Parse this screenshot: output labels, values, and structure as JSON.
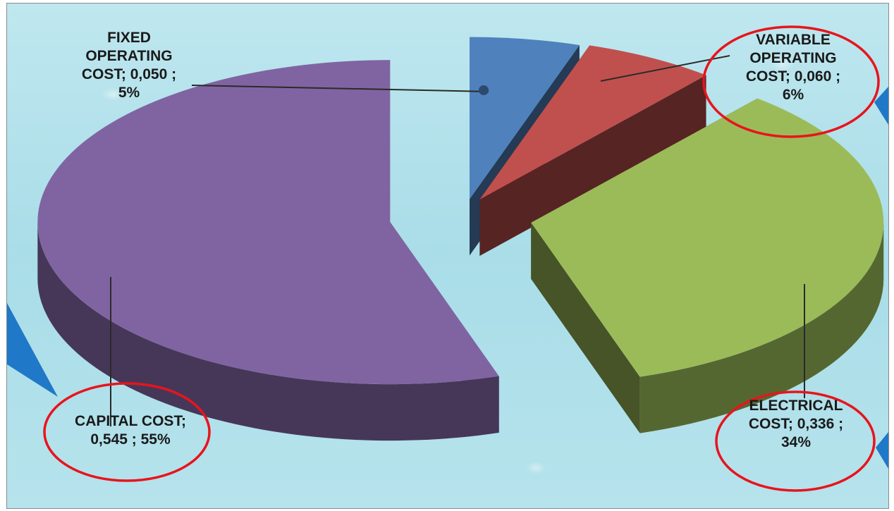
{
  "chart_data": {
    "type": "pie",
    "title": "",
    "slices": [
      {
        "name": "FIXED OPERATING COST",
        "value": 0.05,
        "label_lines": [
          "FIXED",
          "OPERATING",
          "COST; 0,050  ;",
          "5%"
        ],
        "color": "#4f81bd"
      },
      {
        "name": "VARIABLE OPERATING COST",
        "value": 0.06,
        "label_lines": [
          "VARIABLE",
          "OPERATING",
          "COST; 0,060  ;",
          "6%"
        ],
        "color": "#c0504d"
      },
      {
        "name": "ELECTRICAL COST",
        "value": 0.336,
        "label_lines": [
          "ELECTRICAL",
          "COST; 0,336  ;",
          "34%"
        ],
        "color": "#9bbb59"
      },
      {
        "name": "CAPITAL COST",
        "value": 0.545,
        "label_lines": [
          "CAPITAL COST;",
          "0,545  ; 55%"
        ],
        "color": "#8064a2"
      }
    ],
    "legend": "none",
    "highlight_color": "#e8141c",
    "callout_color": "#1f78c8"
  }
}
